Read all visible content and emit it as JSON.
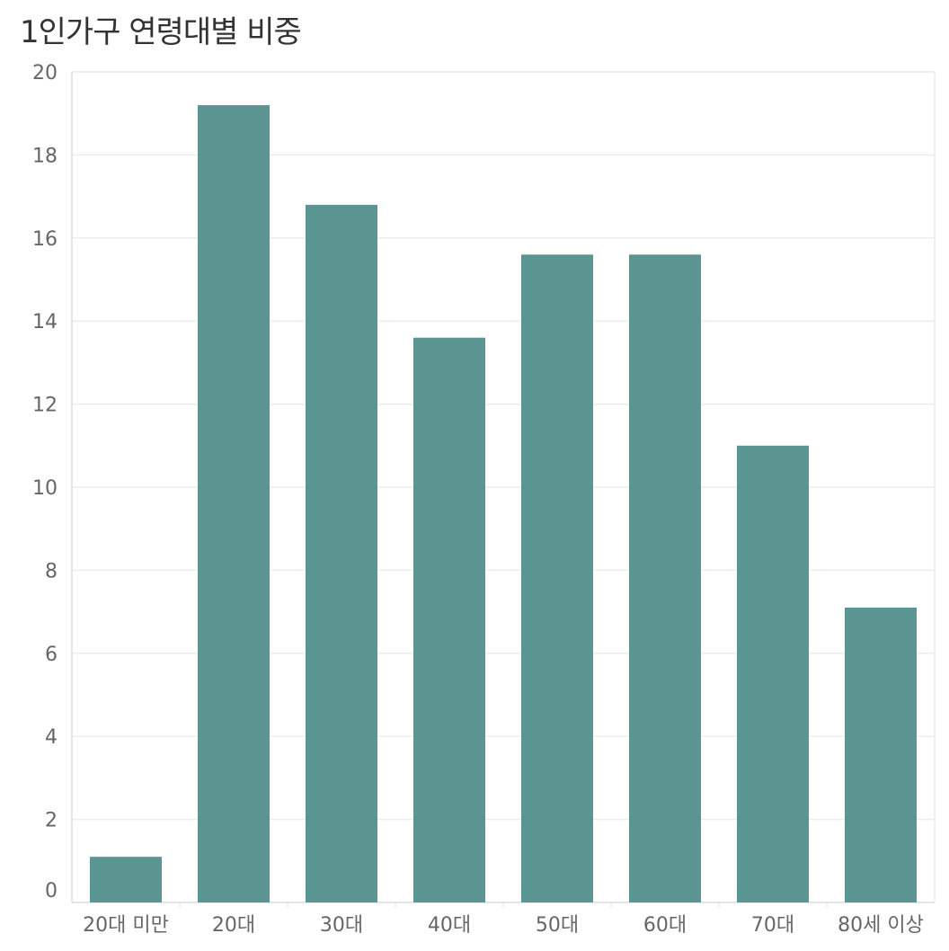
{
  "chart_data": {
    "type": "bar",
    "title": "1인가구 연령대별 비중",
    "xlabel": "",
    "ylabel": "",
    "categories": [
      "20대 미만",
      "20대",
      "30대",
      "40대",
      "50대",
      "60대",
      "70대",
      "80세 이상"
    ],
    "values": [
      1.1,
      19.2,
      16.8,
      13.6,
      15.6,
      15.6,
      11.0,
      7.1
    ],
    "ylim": [
      0,
      20
    ],
    "yticks": [
      "0",
      "2",
      "4",
      "6",
      "8",
      "10",
      "12",
      "14",
      "16",
      "18",
      "20"
    ],
    "grid": true,
    "legend": "none",
    "colors": {
      "bar": "#5b9592",
      "grid": "#ececec",
      "axis": "#dddddd",
      "tick_text": "#666666",
      "title_text": "#333333"
    }
  }
}
